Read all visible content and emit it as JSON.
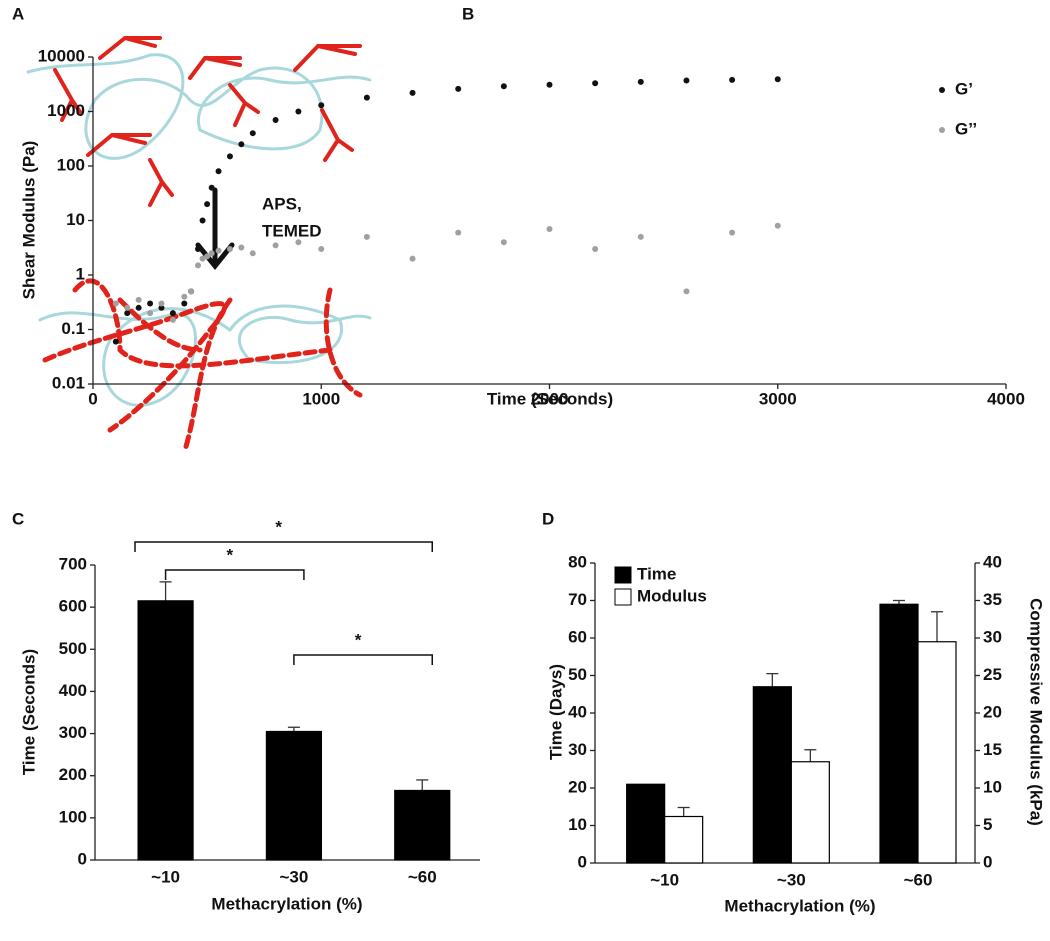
{
  "panels": [
    "A",
    "B",
    "C",
    "D"
  ],
  "diagram": {
    "reagents": [
      "APS,",
      "TEMED"
    ]
  },
  "chart_data": [
    {
      "type": "scatter",
      "xlabel": "Time (Seconds)",
      "ylabel": "Shear Modulus (Pa)",
      "xlim": [
        0,
        4000
      ],
      "xticks": [
        0,
        1000,
        2000,
        3000,
        4000
      ],
      "ylim": [
        0.01,
        10000
      ],
      "yticks": [
        0.01,
        0.1,
        1,
        10,
        100,
        1000,
        10000
      ],
      "ylog": true,
      "legend": "right",
      "series": [
        {
          "name": "G’",
          "color": "#111111",
          "x": [
            100,
            150,
            200,
            250,
            300,
            350,
            400,
            430,
            460,
            480,
            500,
            520,
            550,
            600,
            650,
            700,
            800,
            900,
            1000,
            1200,
            1400,
            1600,
            1800,
            2000,
            2200,
            2400,
            2600,
            2800,
            3000
          ],
          "values": [
            0.06,
            0.2,
            0.25,
            0.3,
            0.25,
            0.2,
            0.3,
            0.5,
            3,
            10,
            20,
            40,
            80,
            150,
            250,
            400,
            700,
            1000,
            1300,
            1800,
            2200,
            2600,
            2900,
            3100,
            3300,
            3500,
            3700,
            3800,
            3900
          ]
        },
        {
          "name": "G’’",
          "color": "#a0a0a0",
          "x": [
            100,
            150,
            200,
            250,
            300,
            350,
            400,
            430,
            460,
            480,
            500,
            520,
            550,
            600,
            650,
            700,
            800,
            900,
            1000,
            1200,
            1400,
            1600,
            1800,
            2000,
            2200,
            2400,
            2600,
            2800,
            3000
          ],
          "values": [
            0.3,
            0.25,
            0.35,
            0.2,
            0.3,
            0.15,
            0.4,
            0.5,
            1.5,
            2,
            2.2,
            2.5,
            2.8,
            3,
            3.2,
            2.5,
            3.5,
            4,
            3,
            5,
            2,
            6,
            4,
            7,
            3,
            5,
            0.5,
            6,
            8
          ]
        }
      ]
    },
    {
      "type": "bar",
      "xlabel": "Methacrylation (%)",
      "ylabel": "Time (Seconds)",
      "categories": [
        "~10",
        "~30",
        "~60"
      ],
      "values": [
        615,
        305,
        165
      ],
      "errors": [
        45,
        10,
        25
      ],
      "color": "#000000",
      "ylim": [
        0,
        700
      ],
      "yticks": [
        0,
        100,
        200,
        300,
        400,
        500,
        600,
        700
      ],
      "significance": [
        {
          "from": "~10",
          "to": "~60",
          "label": "*"
        },
        {
          "from": "~10",
          "to": "~30",
          "label": "*"
        },
        {
          "from": "~30",
          "to": "~60",
          "label": "*"
        }
      ]
    },
    {
      "type": "bar",
      "xlabel": "Methacrylation (%)",
      "ylabel": "Time (Days)",
      "y2label": "Compressive Modulus (kPa)",
      "categories": [
        "~10",
        "~30",
        "~60"
      ],
      "ylim": [
        0,
        80
      ],
      "yticks": [
        0,
        10,
        20,
        30,
        40,
        50,
        60,
        70,
        80
      ],
      "y2lim": [
        0,
        40
      ],
      "y2ticks": [
        0,
        5,
        10,
        15,
        20,
        25,
        30,
        35,
        40
      ],
      "legend": "upper left",
      "series": [
        {
          "name": "Time",
          "color": "#000000",
          "values": [
            21,
            47,
            69
          ],
          "errors": [
            0,
            3.5,
            1
          ]
        },
        {
          "name": "Modulus",
          "color": "#ffffff",
          "axis": "y2",
          "values": [
            6.2,
            13.5,
            29.5
          ],
          "errors": [
            1.2,
            1.6,
            4
          ]
        }
      ]
    }
  ]
}
